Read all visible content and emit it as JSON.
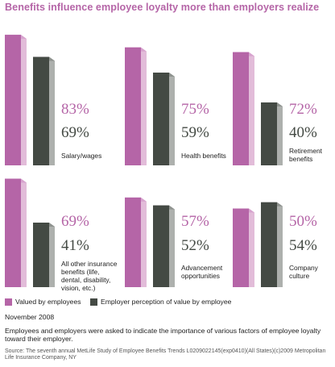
{
  "title": "Benefits influence employee loyalty more than employers realize",
  "colors": {
    "employee": "#b565a7",
    "employee_light": "#e2bcd9",
    "employee_top": "#d7a3ce",
    "employer": "#444a44",
    "employer_light": "#adb0ad",
    "employer_top": "#8e928e",
    "title": "#b565a7"
  },
  "chart_data": {
    "type": "bar",
    "categories": [
      "Salary/wages",
      "Health benefits",
      "Retirement benefits",
      "All other insurance benefits (life, dental, disability, vision, etc.)",
      "Advancement opportunities",
      "Company culture"
    ],
    "series": [
      {
        "name": "Valued by employees",
        "values": [
          83,
          75,
          72,
          69,
          57,
          50
        ]
      },
      {
        "name": "Employer perception of value by employee",
        "values": [
          69,
          59,
          40,
          41,
          52,
          54
        ]
      }
    ],
    "value_labels": {
      "employees": [
        "83%",
        "75%",
        "72%",
        "69%",
        "57%",
        "50%"
      ],
      "employers": [
        "69%",
        "59%",
        "40%",
        "41%",
        "52%",
        "54%"
      ]
    },
    "ylim": [
      0,
      100
    ]
  },
  "legend": {
    "employee": "Valued by employees",
    "employer": "Employer perception of value by employee"
  },
  "date": "November 2008",
  "caption": "Employees and employers were asked to indicate the importance of various factors of employee loyalty toward their employer.",
  "source": "Source: The seventh annual MetLife Study of Employee Benefits Trends L0209022145(exp0410)(All States)(c)2009 Metropolitan Life Insurance Company, NY"
}
